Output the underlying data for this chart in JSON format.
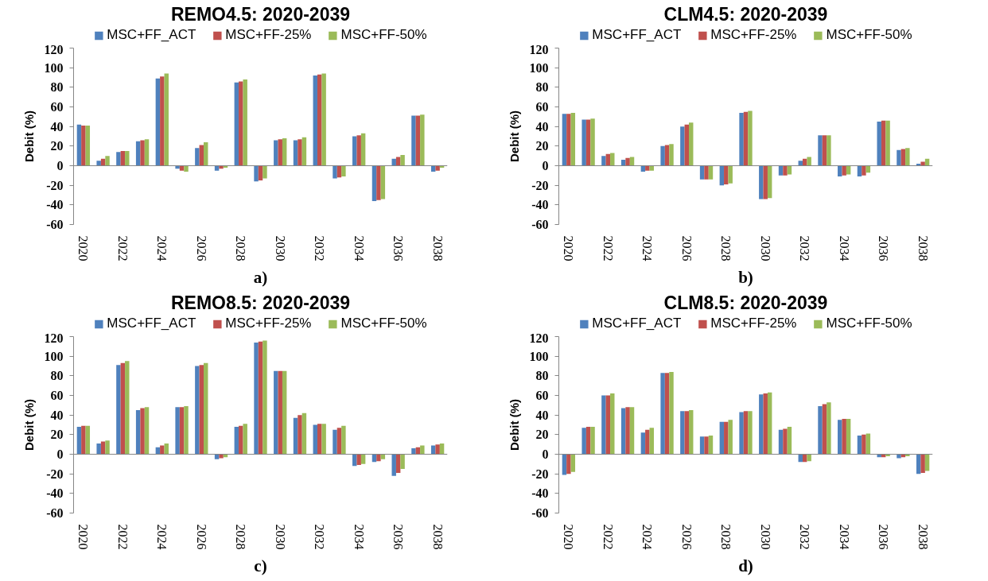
{
  "chart_data": [
    {
      "type": "bar",
      "title": "REMO4.5: 2020-2039",
      "ylabel": "Debit (%)",
      "annotations": [
        "a)"
      ],
      "legend": "top",
      "categories": [
        "2020",
        null,
        "2022",
        null,
        "2024",
        null,
        "2026",
        null,
        "2028",
        null,
        "2030",
        null,
        "2032",
        null,
        "2034",
        null,
        "2036",
        null,
        "2038"
      ],
      "ylim": [
        -60,
        120
      ],
      "yticks": [
        -60,
        -40,
        -20,
        0,
        20,
        40,
        60,
        80,
        100,
        120
      ],
      "series": [
        {
          "name": "MSC+FF_ACT",
          "color": "#4f81bd",
          "values": [
            42,
            5,
            14,
            25,
            89,
            -3,
            18,
            -5,
            85,
            -16,
            26,
            26,
            92,
            -13,
            30,
            -36,
            7,
            51,
            -6
          ]
        },
        {
          "name": "MSC+FF-25%",
          "color": "#c0504d",
          "values": [
            41,
            7,
            15,
            26,
            91,
            -5,
            21,
            -3,
            86,
            -15,
            27,
            27,
            93,
            -12,
            31,
            -35,
            9,
            51,
            -5
          ]
        },
        {
          "name": "MSC+FF-50%",
          "color": "#9bbb59",
          "values": [
            41,
            10,
            15,
            27,
            94,
            -6,
            24,
            -2,
            88,
            -13,
            28,
            29,
            94,
            -11,
            33,
            -34,
            11,
            52,
            -2
          ]
        }
      ]
    },
    {
      "type": "bar",
      "title": "CLM4.5: 2020-2039",
      "ylabel": "Debit (%)",
      "annotations": [
        "b)"
      ],
      "legend": "top",
      "categories": [
        "2020",
        null,
        "2022",
        null,
        "2024",
        null,
        "2026",
        null,
        "2028",
        null,
        "2030",
        null,
        "2032",
        null,
        "2034",
        null,
        "2036",
        null,
        "2038"
      ],
      "ylim": [
        -60,
        120
      ],
      "yticks": [
        -60,
        -40,
        -20,
        0,
        20,
        40,
        60,
        80,
        100,
        120
      ],
      "series": [
        {
          "name": "MSC+FF_ACT",
          "color": "#4f81bd",
          "values": [
            53,
            47,
            10,
            6,
            -6,
            20,
            40,
            -14,
            -20,
            54,
            -34,
            -10,
            5,
            31,
            -11,
            -11,
            45,
            16,
            2
          ]
        },
        {
          "name": "MSC+FF-25%",
          "color": "#c0504d",
          "values": [
            53,
            47,
            12,
            8,
            -5,
            21,
            42,
            -14,
            -19,
            55,
            -34,
            -10,
            7,
            31,
            -10,
            -10,
            46,
            17,
            4
          ]
        },
        {
          "name": "MSC+FF-50%",
          "color": "#9bbb59",
          "values": [
            54,
            48,
            13,
            9,
            -5,
            22,
            44,
            -14,
            -18,
            56,
            -33,
            -9,
            9,
            31,
            -9,
            -7,
            46,
            18,
            7
          ]
        }
      ]
    },
    {
      "type": "bar",
      "title": "REMO8.5: 2020-2039",
      "ylabel": "Debit (%)",
      "annotations": [
        "c)"
      ],
      "legend": "top",
      "categories": [
        "2020",
        null,
        "2022",
        null,
        "2024",
        null,
        "2026",
        null,
        "2028",
        null,
        "2030",
        null,
        "2032",
        null,
        "2034",
        null,
        "2036",
        null,
        "2038"
      ],
      "ylim": [
        -60,
        120
      ],
      "yticks": [
        -60,
        -40,
        -20,
        0,
        20,
        40,
        60,
        80,
        100,
        120
      ],
      "series": [
        {
          "name": "MSC+FF_ACT",
          "color": "#4f81bd",
          "values": [
            28,
            11,
            91,
            45,
            7,
            48,
            90,
            -5,
            28,
            114,
            85,
            37,
            30,
            25,
            -12,
            -8,
            -22,
            6,
            9
          ]
        },
        {
          "name": "MSC+FF-25%",
          "color": "#c0504d",
          "values": [
            29,
            13,
            93,
            47,
            9,
            48,
            91,
            -4,
            29,
            115,
            85,
            40,
            31,
            27,
            -11,
            -7,
            -19,
            7,
            10
          ]
        },
        {
          "name": "MSC+FF-50%",
          "color": "#9bbb59",
          "values": [
            29,
            14,
            95,
            48,
            11,
            49,
            93,
            -3,
            31,
            116,
            85,
            42,
            31,
            29,
            -10,
            -5,
            -15,
            9,
            11
          ]
        }
      ]
    },
    {
      "type": "bar",
      "title": "CLM8.5: 2020-2039",
      "ylabel": "Debit (%)",
      "annotations": [
        "d)"
      ],
      "legend": "top",
      "categories": [
        "2020",
        null,
        "2022",
        null,
        "2024",
        null,
        "2026",
        null,
        "2028",
        null,
        "2030",
        null,
        "2032",
        null,
        "2034",
        null,
        "2036",
        null,
        "2038"
      ],
      "ylim": [
        -60,
        120
      ],
      "yticks": [
        -60,
        -40,
        -20,
        0,
        20,
        40,
        60,
        80,
        100,
        120
      ],
      "series": [
        {
          "name": "MSC+FF_ACT",
          "color": "#4f81bd",
          "values": [
            -21,
            27,
            60,
            47,
            22,
            83,
            44,
            18,
            33,
            43,
            61,
            25,
            -8,
            49,
            35,
            19,
            -3,
            -4,
            -20
          ]
        },
        {
          "name": "MSC+FF-25%",
          "color": "#c0504d",
          "values": [
            -20,
            28,
            60,
            48,
            25,
            83,
            44,
            18,
            33,
            44,
            62,
            26,
            -8,
            51,
            36,
            20,
            -3,
            -3,
            -19
          ]
        },
        {
          "name": "MSC+FF-50%",
          "color": "#9bbb59",
          "values": [
            -18,
            28,
            62,
            48,
            27,
            84,
            45,
            19,
            35,
            44,
            63,
            28,
            -7,
            53,
            36,
            21,
            -2,
            -2,
            -17
          ]
        }
      ]
    }
  ]
}
